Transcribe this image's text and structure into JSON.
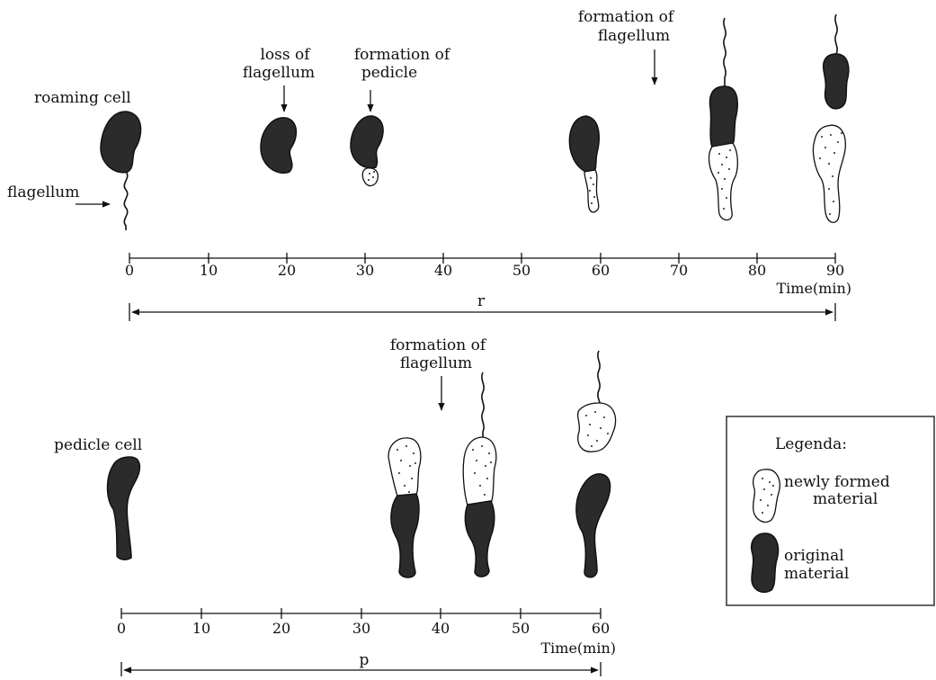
{
  "top": {
    "labels": {
      "roaming_cell": "roaming cell",
      "flagellum": "flagellum",
      "loss_line1": "loss of",
      "loss_line2": "flagellum",
      "pedicle_line1": "formation of",
      "pedicle_line2": "pedicle",
      "flag_form_line1": "formation of",
      "flag_form_line2": "flagellum"
    },
    "ticks": [
      "0",
      "10",
      "20",
      "30",
      "40",
      "50",
      "60",
      "70",
      "80",
      "90"
    ],
    "axis_label": "Time(min)",
    "span_label": "r"
  },
  "bottom": {
    "labels": {
      "pedicle_cell": "pedicle cell",
      "flag_form_line1": "formation of",
      "flag_form_line2": "flagellum"
    },
    "ticks": [
      "0",
      "10",
      "20",
      "30",
      "40",
      "50",
      "60"
    ],
    "axis_label": "Time(min)",
    "span_label": "p"
  },
  "legend": {
    "title": "Legenda:",
    "new_line1": "newly formed",
    "new_line2": "material",
    "orig_line1": "original",
    "orig_line2": "material"
  },
  "colors": {
    "original_material": "#2b2b2b",
    "new_material": "#ffffff",
    "ink": "#111111"
  }
}
